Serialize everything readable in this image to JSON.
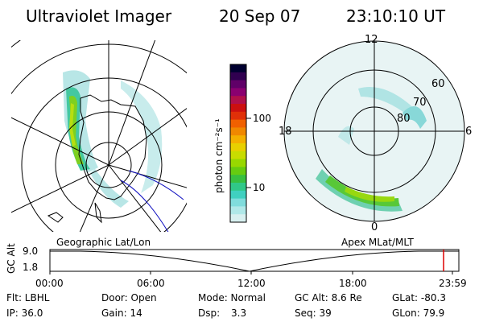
{
  "header": {
    "instrument": "Ultraviolet Imager",
    "date": "20 Sep 07",
    "time": "23:10:10 UT"
  },
  "geo_panel": {
    "label": "Geographic Lat/Lon"
  },
  "apex_panel": {
    "label": "Apex MLat/MLT",
    "mlt_labels": {
      "top": "12",
      "left": "18",
      "right": "6",
      "bottom": "0"
    },
    "lat_labels": [
      "60",
      "70",
      "80"
    ]
  },
  "colorbar": {
    "units_label": "photon cm⁻²s⁻¹",
    "ticks": [
      "100",
      "10"
    ],
    "colors": [
      "#000030",
      "#300050",
      "#600068",
      "#8a0070",
      "#b0104a",
      "#cc1010",
      "#e03008",
      "#f06000",
      "#f08800",
      "#f4b000",
      "#e8d000",
      "#c8dc00",
      "#98d800",
      "#66cc10",
      "#38c040",
      "#30c888",
      "#40d0c0",
      "#80dcdc",
      "#b0e8e8",
      "#d8f0f0"
    ]
  },
  "altitude_plot": {
    "axis_label": "GC Alt",
    "y_ticks": [
      "9.0",
      "1.8"
    ],
    "x_ticks": [
      "00:00",
      "06:00",
      "12:00",
      "18:00",
      "23:59"
    ],
    "marker_color": "#dd0000"
  },
  "status": {
    "flt": "Flt: LBHL",
    "door": "Door: Open",
    "mode": "Mode: Normal",
    "gc_alt": "GC Alt: 8.6 Re",
    "glat": "GLat: -80.3",
    "ip": "IP: 36.0",
    "gain": "Gain: 14",
    "dsp_label": "Dsp:",
    "dsp_value": "3.3",
    "seq": "Seq: 39",
    "glon": "GLon: 79.9"
  }
}
